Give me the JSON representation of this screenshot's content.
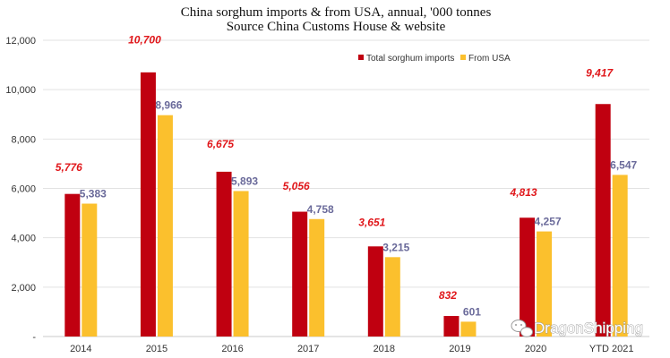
{
  "chart_data": {
    "type": "bar",
    "title": "China sorghum imports & from USA, annual, '000 tonnes",
    "subtitle": "Source China Customs House & website",
    "categories": [
      "2014",
      "2015",
      "2016",
      "2017",
      "2018",
      "2019",
      "2020",
      "YTD 2021"
    ],
    "series": [
      {
        "name": "Total sorghum imports",
        "color": "#c00010",
        "label_color": "#e0161a",
        "values": [
          5776,
          10700,
          6675,
          5056,
          3651,
          832,
          4813,
          9417
        ],
        "labels": [
          "5,776",
          "10,700",
          "6,675",
          "5,056",
          "3,651",
          "832",
          "4,813",
          "9,417"
        ]
      },
      {
        "name": "From USA",
        "color": "#fbc02d",
        "label_color": "#6a6a9a",
        "values": [
          5383,
          8966,
          5893,
          4758,
          3215,
          601,
          4257,
          6547
        ],
        "labels": [
          "5,383",
          "8,966",
          "5,893",
          "4,758",
          "3,215",
          "601",
          "4,257",
          "6,547"
        ]
      }
    ],
    "ylim": [
      0,
      12000
    ],
    "yticks": [
      0,
      2000,
      4000,
      6000,
      8000,
      10000,
      12000
    ],
    "ytick_labels": [
      "-",
      "2,000",
      "4,000",
      "6,000",
      "8,000",
      "10,000",
      "12,000"
    ],
    "xlabel": "",
    "ylabel": "",
    "grid": true,
    "legend_position": "top-right"
  },
  "watermark": {
    "text": "DragonShipping",
    "icon": "wechat-icon"
  }
}
